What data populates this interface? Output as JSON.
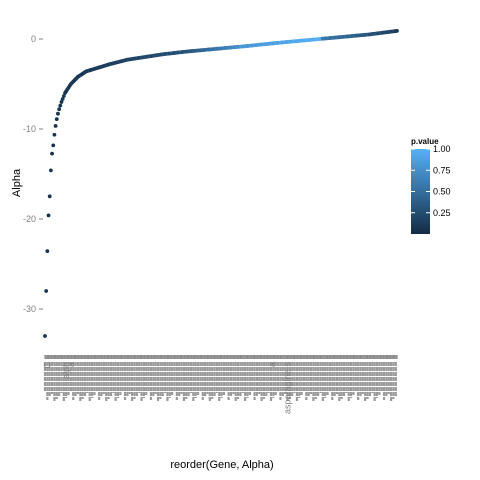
{
  "chart_data": {
    "type": "scatter",
    "title": "",
    "xlabel": "reorder(Gene, Alpha)",
    "ylabel": "Alpha",
    "yticks": [
      0,
      -10,
      -20,
      -30
    ],
    "ylim": [
      -35,
      1.5
    ],
    "grid": false,
    "legend": {
      "title": "p.value",
      "placement": "right",
      "ticks": [
        1.0,
        0.75,
        0.5,
        0.25
      ],
      "tick_labels": [
        "1.00",
        "0.75",
        "0.50",
        "0.25"
      ],
      "range": [
        0,
        1
      ],
      "color_low": "#132B43",
      "color_high": "#56B1F7"
    },
    "x_tick_labels_legible": [
      "C",
      "alph",
      "a",
      "a",
      "asparagine-s"
    ],
    "n_points": 300,
    "curve_anchors": [
      [
        0.0,
        -33.0
      ],
      [
        0.5,
        -31.8
      ],
      [
        1.0,
        -28.0
      ],
      [
        1.4,
        -26.8
      ],
      [
        1.8,
        -25.2
      ],
      [
        2.4,
        -20.3
      ],
      [
        2.9,
        -20.0
      ],
      [
        3.4,
        -18.0
      ],
      [
        3.9,
        -17.6
      ],
      [
        4.4,
        -17.0
      ],
      [
        5.4,
        -13.0
      ],
      [
        6.3,
        -12.6
      ],
      [
        7.2,
        -11.6
      ],
      [
        8.2,
        -10.4
      ],
      [
        9.5,
        -9.2
      ],
      [
        11.5,
        -8.0
      ],
      [
        14.0,
        -7.0
      ],
      [
        17.0,
        -6.0
      ],
      [
        22.0,
        -5.0
      ],
      [
        28.0,
        -4.2
      ],
      [
        35.0,
        -3.6
      ],
      [
        45.0,
        -3.2
      ],
      [
        55.0,
        -2.8
      ],
      [
        70.0,
        -2.3
      ],
      [
        85.0,
        -2.0
      ],
      [
        100.0,
        -1.7
      ],
      [
        120.0,
        -1.4
      ],
      [
        145.0,
        -1.1
      ],
      [
        170.0,
        -0.8
      ],
      [
        200.0,
        -0.4
      ],
      [
        225.0,
        -0.1
      ],
      [
        250.0,
        0.2
      ],
      [
        275.0,
        0.5
      ],
      [
        299.0,
        0.9
      ]
    ],
    "pvalue_segments": [
      {
        "from": 0,
        "to": 40,
        "p": [
          0.05,
          0.12
        ]
      },
      {
        "from": 40,
        "to": 120,
        "p": [
          0.12,
          0.3
        ]
      },
      {
        "from": 120,
        "to": 165,
        "p": [
          0.3,
          0.75
        ]
      },
      {
        "from": 165,
        "to": 235,
        "p": [
          0.8,
          1.0
        ]
      },
      {
        "from": 235,
        "to": 299,
        "p": [
          0.6,
          0.15
        ]
      }
    ]
  }
}
